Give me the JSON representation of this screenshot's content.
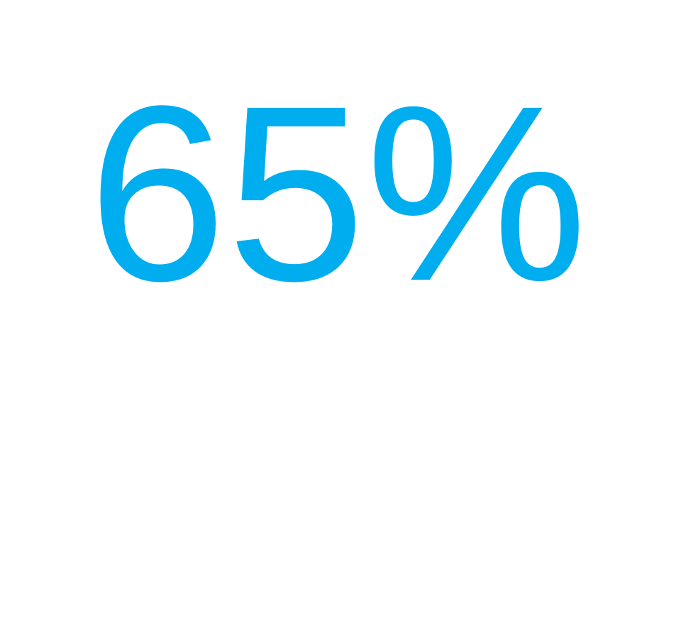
{
  "headline": "65%"
}
